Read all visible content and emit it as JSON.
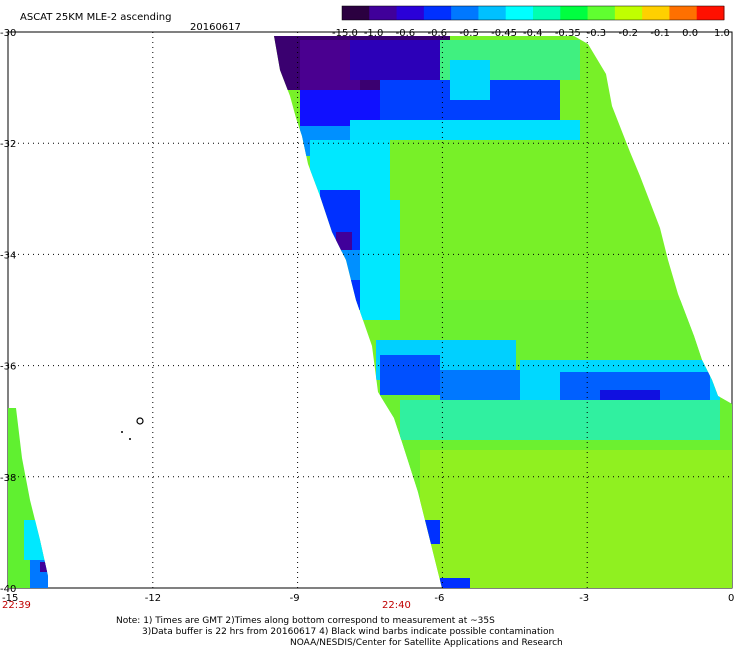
{
  "header": {
    "title": "ASCAT 25KM MLE-2 ascending",
    "date": "20160617"
  },
  "colorbar": {
    "labels": [
      "-15.0",
      "-1.0",
      "-0.6",
      "-0.6",
      "-0.5",
      "-0.45",
      "-0.4",
      "-0.35",
      "-0.3",
      "-0.2",
      "-0.1",
      "0.0",
      "1.0"
    ],
    "colors": [
      "#2b0040",
      "#40009a",
      "#2a00d8",
      "#0030ff",
      "#0078ff",
      "#00c0ff",
      "#00ffff",
      "#00ffb0",
      "#00ff40",
      "#60ff30",
      "#c0ff00",
      "#ffd000",
      "#ff7000",
      "#ff1000"
    ]
  },
  "axes": {
    "x_ticks": [
      "-15",
      "-12",
      "-9",
      "-6",
      "-3",
      "0"
    ],
    "y_ticks": [
      "-30",
      "-32",
      "-34",
      "-36",
      "-38",
      "-40"
    ],
    "xlim": [
      -15,
      0
    ],
    "ylim": [
      -40,
      -30
    ]
  },
  "time_labels": [
    "22:39",
    "22:40"
  ],
  "notes": {
    "line1": "Note: 1) Times are GMT 2)Times along bottom correspond to measurement at ~35S",
    "line2": "3)Data buffer is 22 hrs from 20160617 4) Black wind barbs indicate possible contamination",
    "line3": "NOAA/NESDIS/Center for Satellite Applications and Research"
  }
}
